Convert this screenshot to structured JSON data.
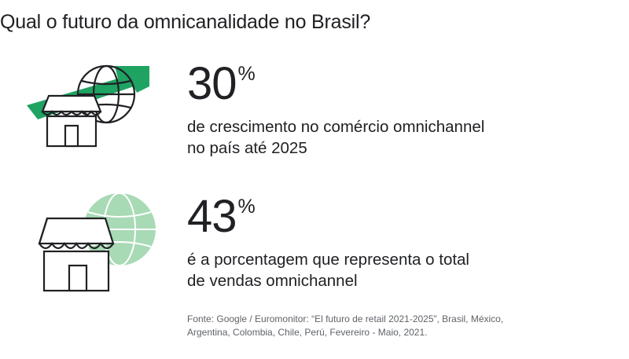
{
  "title": "Qual o futuro da omnicanalidade no Brasil?",
  "stats": [
    {
      "value": "30",
      "unit": "%",
      "description_line1": "de crescimento no comércio omnichannel",
      "description_line2": "no país até 2025",
      "icon": "store-growth-globe-icon"
    },
    {
      "value": "43",
      "unit": "%",
      "description_line1": "é a porcentagem que representa o total",
      "description_line2": "de vendas omnichannel",
      "icon": "store-globe-icon"
    }
  ],
  "source_line1": "Fonte: Google / Euromonitor: “El futuro de retail 2021-2025”, Brasil, México,",
  "source_line2": "Argentina, Colombia, Chile, Perú, Fevereiro - Maio, 2021.",
  "colors": {
    "accent_green": "#1ea362",
    "light_green": "#a8dab5",
    "text": "#202124",
    "muted": "#5f6368"
  }
}
